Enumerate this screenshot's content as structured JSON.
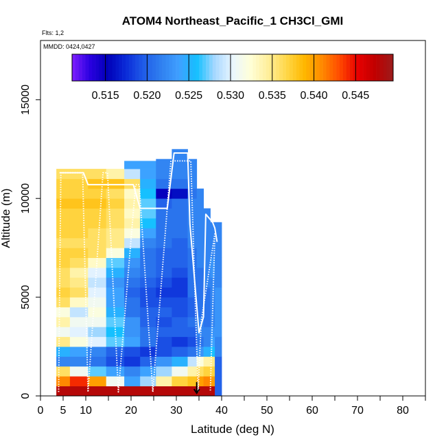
{
  "chart_data": {
    "type": "heatmap",
    "title": "ATOM4 Northeast_Pacific_1 CH3Cl_GMI",
    "flights_note": "Flts: 1,2",
    "dates_note": "MMDD: 0424,0427",
    "xlabel": "Latitude (deg N)",
    "ylabel": "Altitude (m)",
    "xlim": [
      0,
      85
    ],
    "ylim": [
      0,
      18000
    ],
    "x_ticks": [
      0,
      5,
      10,
      20,
      30,
      40,
      50,
      60,
      70,
      80
    ],
    "x_minor_ticks": [
      15,
      25,
      35,
      45,
      55,
      65,
      75,
      85
    ],
    "y_ticks": [
      0,
      5000,
      10000,
      15000
    ],
    "colorbar": {
      "range": [
        0.511,
        0.5495
      ],
      "ticks": [
        0.515,
        0.52,
        0.525,
        0.53,
        0.535,
        0.54,
        0.545
      ],
      "tick_labels": [
        "0.515",
        "0.520",
        "0.525",
        "0.530",
        "0.535",
        "0.540",
        "0.545"
      ],
      "colors": [
        "#7f1fff",
        "#2a00e0",
        "#0000b8",
        "#0a2ad8",
        "#1f5ce8",
        "#3080f0",
        "#3fa0ff",
        "#14c0ff",
        "#a8d8ff",
        "#eaf6ff",
        "#ffffd8",
        "#ffef9a",
        "#ffd84a",
        "#ffb800",
        "#ff8a00",
        "#ff4a00",
        "#e80000",
        "#c00000",
        "#9b1c1c"
      ]
    },
    "columns": [
      {
        "lat0": 3.5,
        "lat1": 6.5,
        "alt_top": 11500,
        "profile": [
          0.548,
          0.541,
          0.536,
          0.522,
          0.525,
          0.535,
          0.531,
          0.534,
          0.532,
          0.536,
          0.537,
          0.536,
          0.536,
          0.537,
          0.537,
          0.536,
          0.537,
          0.537,
          0.537,
          0.538,
          0.537,
          0.537,
          0.536
        ]
      },
      {
        "lat0": 6.5,
        "lat1": 10.5,
        "alt_top": 11500,
        "profile": [
          0.548,
          0.544,
          0.531,
          0.522,
          0.524,
          0.532,
          0.53,
          0.531,
          0.529,
          0.533,
          0.536,
          0.535,
          0.534,
          0.536,
          0.537,
          0.536,
          0.537,
          0.537,
          0.537,
          0.538,
          0.537,
          0.537,
          0.536
        ]
      },
      {
        "lat0": 10.5,
        "lat1": 14.5,
        "alt_top": 11500,
        "profile": [
          0.548,
          0.54,
          0.527,
          0.521,
          0.522,
          0.53,
          0.528,
          0.531,
          0.532,
          0.531,
          0.53,
          0.529,
          0.53,
          0.533,
          0.536,
          0.536,
          0.536,
          0.537,
          0.537,
          0.538,
          0.537,
          0.538,
          0.536
        ]
      },
      {
        "lat0": 14.5,
        "lat1": 18.5,
        "alt_top": 11500,
        "profile": [
          0.548,
          0.531,
          0.524,
          0.519,
          0.52,
          0.527,
          0.526,
          0.527,
          0.525,
          0.524,
          0.524,
          0.523,
          0.525,
          0.527,
          0.532,
          0.535,
          0.535,
          0.536,
          0.536,
          0.537,
          0.536,
          0.538,
          0.534
        ]
      },
      {
        "lat0": 18.5,
        "lat1": 22.0,
        "alt_top": 11900,
        "profile": [
          0.548,
          0.524,
          0.522,
          0.518,
          0.519,
          0.524,
          0.523,
          0.523,
          0.521,
          0.521,
          0.52,
          0.521,
          0.522,
          0.523,
          0.525,
          0.529,
          0.532,
          0.534,
          0.533,
          0.534,
          0.533,
          0.536,
          0.529,
          0.524
        ]
      },
      {
        "lat0": 22.0,
        "lat1": 25.5,
        "alt_top": 11900,
        "profile": [
          0.548,
          0.528,
          0.524,
          0.52,
          0.518,
          0.521,
          0.521,
          0.52,
          0.52,
          0.519,
          0.519,
          0.52,
          0.521,
          0.521,
          0.521,
          0.522,
          0.524,
          0.526,
          0.527,
          0.527,
          0.526,
          0.525,
          0.524,
          0.524
        ]
      },
      {
        "lat0": 25.5,
        "lat1": 29.0,
        "alt_top": 12100,
        "profile": [
          0.548,
          0.534,
          0.528,
          0.523,
          0.519,
          0.519,
          0.52,
          0.519,
          0.52,
          0.519,
          0.518,
          0.519,
          0.52,
          0.52,
          0.52,
          0.521,
          0.521,
          0.521,
          0.521,
          0.52,
          0.515,
          0.521,
          0.522,
          0.522
        ]
      },
      {
        "lat0": 29.0,
        "lat1": 32.5,
        "alt_top": 12500,
        "profile": [
          0.548,
          0.537,
          0.531,
          0.525,
          0.52,
          0.518,
          0.52,
          0.52,
          0.519,
          0.519,
          0.518,
          0.518,
          0.519,
          0.52,
          0.52,
          0.52,
          0.521,
          0.521,
          0.521,
          0.521,
          0.516,
          0.521,
          0.522,
          0.522,
          0.522
        ]
      },
      {
        "lat0": 32.5,
        "lat1": 34.5,
        "alt_top": 12000,
        "profile": [
          0.548,
          0.538,
          0.534,
          0.529,
          0.521,
          0.519,
          0.52,
          0.521,
          0.52,
          0.52,
          0.521,
          0.521,
          0.521,
          0.521,
          0.521,
          0.522,
          0.522,
          0.522,
          0.522,
          0.522,
          0.521,
          0.522,
          0.522,
          0.522
        ]
      },
      {
        "lat0": 34.5,
        "lat1": 36.0,
        "alt_top": 10800,
        "profile": [
          0.548,
          0.54,
          0.536,
          0.532,
          0.523,
          0.521,
          0.522,
          0.522,
          0.521,
          0.521,
          0.521,
          0.521,
          0.521,
          0.522,
          0.522,
          0.522,
          0.522,
          0.522,
          0.522,
          0.522,
          0.522
        ]
      },
      {
        "lat0": 36.0,
        "lat1": 37.5,
        "alt_top": 9500,
        "profile": [
          0.548,
          0.541,
          0.537,
          0.534,
          0.525,
          0.522,
          0.522,
          0.521,
          0.521,
          0.521,
          0.521,
          0.522,
          0.522,
          0.522,
          0.522,
          0.522,
          0.522,
          0.522,
          0.522
        ]
      },
      {
        "lat0": 37.5,
        "lat1": 38.5,
        "alt_top": 8800,
        "profile": [
          0.548,
          0.54,
          0.537,
          0.535,
          0.526,
          0.524,
          0.523,
          0.522,
          0.522,
          0.522,
          0.522,
          0.522,
          0.523,
          0.523,
          0.522,
          0.522,
          0.522,
          0.522
        ]
      },
      {
        "lat0": 38.5,
        "lat1": 40.0,
        "alt_top": 8800,
        "profile": [
          0.52,
          0.52,
          0.52,
          0.52,
          0.522,
          0.522,
          0.523,
          0.523,
          0.523,
          0.523,
          0.523,
          0.522,
          0.522,
          0.522,
          0.522,
          0.522,
          0.522,
          0.522
        ]
      }
    ],
    "flight_tracks": [
      {
        "name": "track-flight-1-solid",
        "style": "solid",
        "points": [
          [
            4.2,
            11300
          ],
          [
            9.5,
            11300
          ],
          [
            10.5,
            10700
          ],
          [
            13.5,
            10700
          ],
          [
            14.8,
            10700
          ],
          [
            20.5,
            10700
          ],
          [
            22.0,
            9500
          ],
          [
            28.0,
            9500
          ],
          [
            29.5,
            12300
          ],
          [
            32.5,
            12300
          ],
          [
            33.0,
            8700
          ],
          [
            35.0,
            3200
          ],
          [
            36.0,
            4000
          ],
          [
            36.5,
            9200
          ],
          [
            38.0,
            8800
          ],
          [
            38.5,
            8500
          ],
          [
            39.0,
            7800
          ]
        ]
      },
      {
        "name": "track-flight-2-dotted",
        "style": "dotted",
        "points": [
          [
            4.0,
            200
          ],
          [
            4.5,
            11300
          ],
          [
            9.3,
            11300
          ],
          [
            10.5,
            200
          ],
          [
            13.8,
            11300
          ],
          [
            14.8,
            11300
          ],
          [
            17.2,
            200
          ],
          [
            21.0,
            10700
          ],
          [
            21.8,
            10700
          ],
          [
            24.8,
            200
          ],
          [
            28.8,
            11900
          ],
          [
            33.2,
            11900
          ],
          [
            34.8,
            200
          ],
          [
            35.5,
            3800
          ],
          [
            38.5,
            8200
          ],
          [
            37.5,
            200
          ]
        ]
      }
    ],
    "marker": {
      "type": "arrow-down",
      "lat": 34.5,
      "alt_top": 700,
      "alt_bottom": 0
    }
  }
}
